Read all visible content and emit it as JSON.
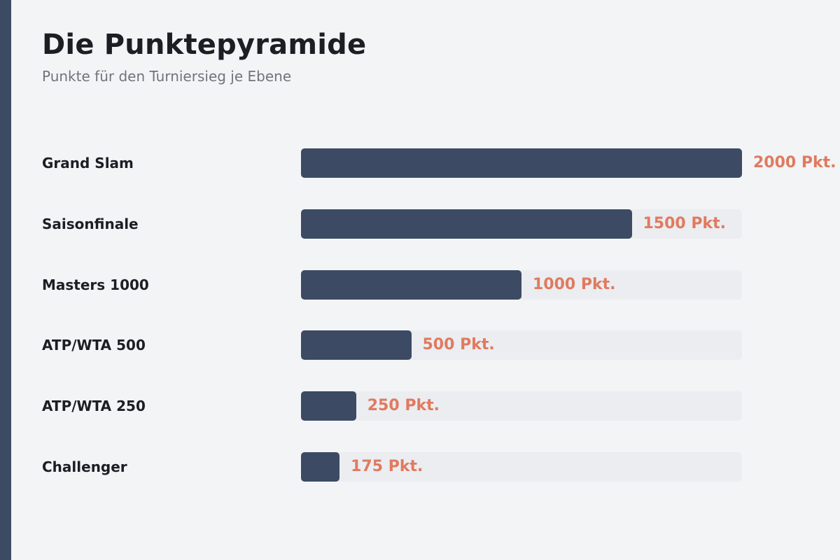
{
  "header": {
    "title": "Die Punktepyramide",
    "subtitle": "Punkte für den Turniersieg je Ebene"
  },
  "colors": {
    "background": "#f3f4f6",
    "accent": "#3c4b63",
    "bar": "#3c4b63",
    "track": "#ebedf1",
    "value_label": "#e07a5f",
    "text": "#1b1e23",
    "subtitle": "#6f747c"
  },
  "chart_data": {
    "type": "bar",
    "orientation": "horizontal",
    "title": "Die Punktepyramide",
    "subtitle": "Punkte für den Turniersieg je Ebene",
    "categories": [
      "Grand Slam",
      "Saisonfinale",
      "Masters 1000",
      "ATP/WTA 500",
      "ATP/WTA 250",
      "Challenger"
    ],
    "values": [
      2000,
      1500,
      1000,
      500,
      250,
      175
    ],
    "value_labels": [
      "2000 Pkt.",
      "1500 Pkt.",
      "1000 Pkt.",
      "500 Pkt.",
      "250 Pkt.",
      "175 Pkt."
    ],
    "xlim": [
      0,
      2000
    ],
    "xlabel": "",
    "ylabel": "",
    "grid": false,
    "legend": "none"
  }
}
